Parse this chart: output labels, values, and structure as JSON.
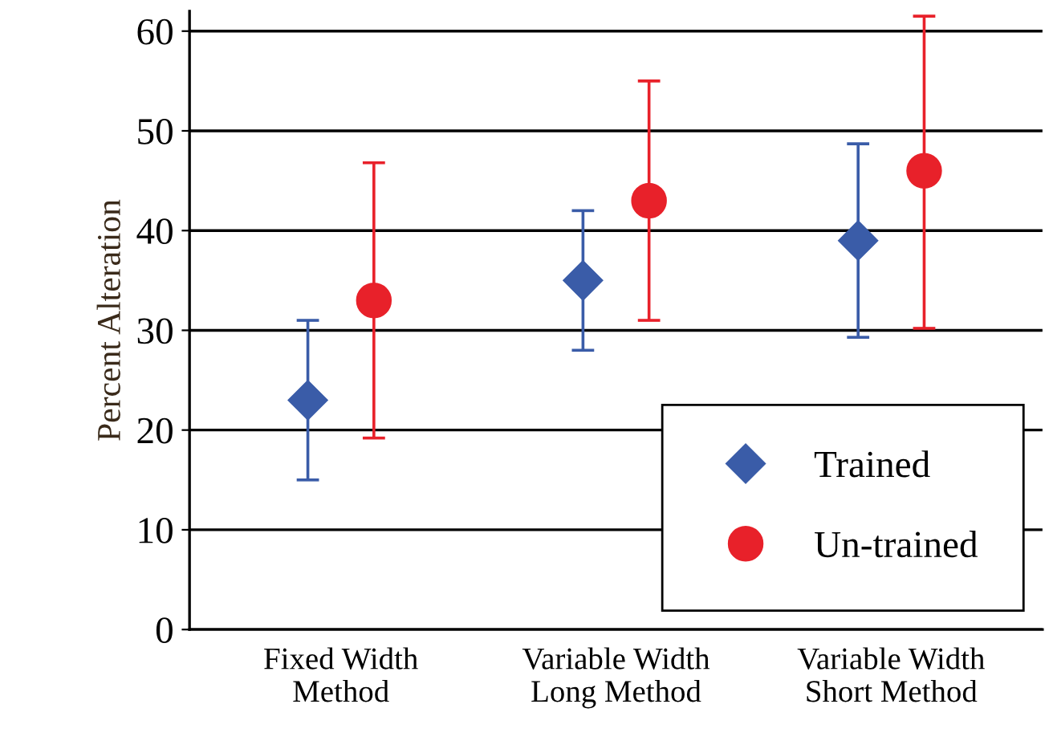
{
  "chart_data": {
    "type": "scatter",
    "ylabel": "Percent Alteration",
    "categories": [
      "Fixed Width\nMethod",
      "Variable Width\nLong Method",
      "Variable Width\nShort Method"
    ],
    "series": [
      {
        "name": "Trained",
        "color": "#3a5ca8",
        "marker": "diamond",
        "values": [
          23,
          35,
          39
        ],
        "errors": [
          [
            15,
            31
          ],
          [
            28,
            42
          ],
          [
            29.3,
            48.7
          ]
        ]
      },
      {
        "name": "Un-trained",
        "color": "#e8212a",
        "marker": "circle",
        "values": [
          33,
          43,
          46
        ],
        "errors": [
          [
            19.2,
            46.8
          ],
          [
            31,
            55
          ],
          [
            30.2,
            61.5
          ]
        ]
      }
    ],
    "ylim": [
      0,
      62
    ],
    "yticks": [
      0,
      10,
      20,
      30,
      40,
      50,
      60
    ],
    "grid": "y",
    "legend": "bottom right"
  }
}
